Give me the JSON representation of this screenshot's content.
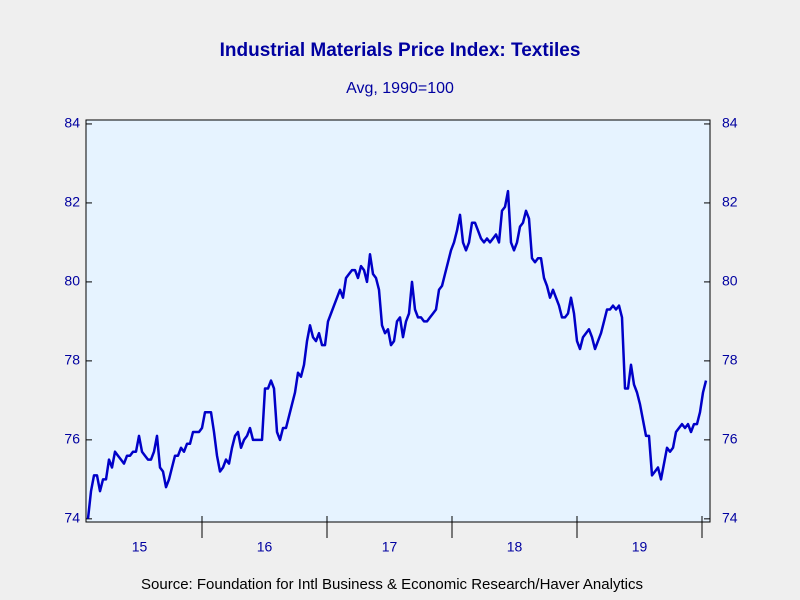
{
  "chart_data": {
    "type": "line",
    "title": "Industrial Materials Price Index: Textiles",
    "subtitle": "Avg, 1990=100",
    "source": "Source:  Foundation for Intl Business & Economic Research/Haver Analytics",
    "xlim": [
      2015.072,
      2020.064
    ],
    "xticks": [
      {
        "value": 2015.5,
        "label": "15"
      },
      {
        "value": 2016.5,
        "label": "16"
      },
      {
        "value": 2017.5,
        "label": "17"
      },
      {
        "value": 2018.5,
        "label": "18"
      },
      {
        "value": 2019.5,
        "label": "19"
      }
    ],
    "ylim": [
      73.92,
      84.1
    ],
    "yticks": [
      74,
      76,
      78,
      80,
      82,
      84
    ],
    "right_axis_mirror": true,
    "series": [
      {
        "name": "Textiles",
        "color": "#0000c8",
        "x": [
          2015.088,
          2015.112,
          2015.136,
          2015.16,
          2015.184,
          2015.208,
          2015.232,
          2015.256,
          2015.28,
          2015.304,
          2015.328,
          2015.352,
          2015.376,
          2015.4,
          2015.424,
          2015.448,
          2015.472,
          2015.496,
          2015.52,
          2015.544,
          2015.568,
          2015.592,
          2015.616,
          2015.64,
          2015.664,
          2015.688,
          2015.712,
          2015.736,
          2015.76,
          2015.784,
          2015.808,
          2015.832,
          2015.856,
          2015.88,
          2015.904,
          2015.928,
          2015.952,
          2015.976,
          2016,
          2016.024,
          2016.048,
          2016.072,
          2016.096,
          2016.12,
          2016.144,
          2016.168,
          2016.192,
          2016.216,
          2016.24,
          2016.264,
          2016.288,
          2016.312,
          2016.336,
          2016.36,
          2016.384,
          2016.408,
          2016.432,
          2016.456,
          2016.48,
          2016.504,
          2016.528,
          2016.552,
          2016.576,
          2016.6,
          2016.624,
          2016.648,
          2016.672,
          2016.696,
          2016.72,
          2016.744,
          2016.768,
          2016.792,
          2016.816,
          2016.84,
          2016.864,
          2016.888,
          2016.912,
          2016.936,
          2016.96,
          2016.984,
          2017.008,
          2017.032,
          2017.056,
          2017.08,
          2017.104,
          2017.128,
          2017.152,
          2017.176,
          2017.2,
          2017.224,
          2017.248,
          2017.272,
          2017.296,
          2017.32,
          2017.344,
          2017.368,
          2017.392,
          2017.416,
          2017.44,
          2017.464,
          2017.488,
          2017.512,
          2017.536,
          2017.56,
          2017.584,
          2017.608,
          2017.632,
          2017.656,
          2017.68,
          2017.704,
          2017.728,
          2017.752,
          2017.776,
          2017.8,
          2017.824,
          2017.848,
          2017.872,
          2017.896,
          2017.92,
          2017.944,
          2017.968,
          2017.992,
          2018.016,
          2018.04,
          2018.064,
          2018.088,
          2018.112,
          2018.136,
          2018.16,
          2018.184,
          2018.208,
          2018.232,
          2018.256,
          2018.28,
          2018.304,
          2018.328,
          2018.352,
          2018.376,
          2018.4,
          2018.424,
          2018.448,
          2018.472,
          2018.496,
          2018.52,
          2018.544,
          2018.568,
          2018.592,
          2018.616,
          2018.64,
          2018.664,
          2018.688,
          2018.712,
          2018.736,
          2018.76,
          2018.784,
          2018.808,
          2018.832,
          2018.856,
          2018.88,
          2018.904,
          2018.928,
          2018.952,
          2018.976,
          2019,
          2019.024,
          2019.048,
          2019.072,
          2019.096,
          2019.12,
          2019.144,
          2019.168,
          2019.192,
          2019.216,
          2019.24,
          2019.264,
          2019.288,
          2019.312,
          2019.336,
          2019.36,
          2019.384,
          2019.408,
          2019.432,
          2019.456,
          2019.48,
          2019.504,
          2019.528,
          2019.552,
          2019.576,
          2019.6,
          2019.624,
          2019.648,
          2019.672,
          2019.696,
          2019.72,
          2019.744,
          2019.768,
          2019.792,
          2019.816,
          2019.84,
          2019.864,
          2019.888,
          2019.912,
          2019.936,
          2019.96,
          2019.984,
          2020.008,
          2020.032
        ],
        "values": [
          74.0,
          74.7,
          75.1,
          75.1,
          74.7,
          75.0,
          75.0,
          75.5,
          75.3,
          75.7,
          75.6,
          75.5,
          75.4,
          75.6,
          75.6,
          75.7,
          75.7,
          76.1,
          75.7,
          75.6,
          75.5,
          75.5,
          75.7,
          76.1,
          75.3,
          75.2,
          74.8,
          75.0,
          75.3,
          75.6,
          75.6,
          75.8,
          75.7,
          75.9,
          75.9,
          76.2,
          76.2,
          76.2,
          76.3,
          76.7,
          76.7,
          76.7,
          76.2,
          75.6,
          75.2,
          75.3,
          75.5,
          75.4,
          75.8,
          76.1,
          76.2,
          75.8,
          76.0,
          76.1,
          76.3,
          76.0,
          76.0,
          76.0,
          76.0,
          77.3,
          77.3,
          77.5,
          77.3,
          76.2,
          76.0,
          76.3,
          76.3,
          76.6,
          76.9,
          77.2,
          77.7,
          77.6,
          77.9,
          78.5,
          78.9,
          78.6,
          78.5,
          78.7,
          78.4,
          78.4,
          79.0,
          79.2,
          79.4,
          79.6,
          79.8,
          79.6,
          80.1,
          80.2,
          80.3,
          80.3,
          80.1,
          80.4,
          80.3,
          80.0,
          80.7,
          80.2,
          80.1,
          79.8,
          78.9,
          78.7,
          78.8,
          78.4,
          78.5,
          79.0,
          79.1,
          78.6,
          79.0,
          79.2,
          80.0,
          79.3,
          79.1,
          79.1,
          79.0,
          79.0,
          79.1,
          79.2,
          79.3,
          79.8,
          79.9,
          80.2,
          80.5,
          80.8,
          81.0,
          81.3,
          81.7,
          81.0,
          80.8,
          81.0,
          81.5,
          81.5,
          81.3,
          81.1,
          81.0,
          81.1,
          81.0,
          81.1,
          81.2,
          81.0,
          81.8,
          81.9,
          82.3,
          81.0,
          80.8,
          81.0,
          81.4,
          81.5,
          81.8,
          81.6,
          80.6,
          80.5,
          80.6,
          80.6,
          80.1,
          79.9,
          79.6,
          79.8,
          79.6,
          79.4,
          79.1,
          79.1,
          79.2,
          79.6,
          79.2,
          78.5,
          78.3,
          78.6,
          78.7,
          78.8,
          78.6,
          78.3,
          78.5,
          78.7,
          79.0,
          79.3,
          79.3,
          79.4,
          79.3,
          79.4,
          79.1,
          77.3,
          77.3,
          77.9,
          77.4,
          77.2,
          76.9,
          76.5,
          76.1,
          76.1,
          75.1,
          75.2,
          75.3,
          75.0,
          75.4,
          75.8,
          75.7,
          75.8,
          76.2,
          76.3,
          76.4,
          76.3,
          76.4,
          76.2,
          76.4,
          76.4,
          76.7,
          77.2,
          77.5
        ]
      }
    ]
  }
}
